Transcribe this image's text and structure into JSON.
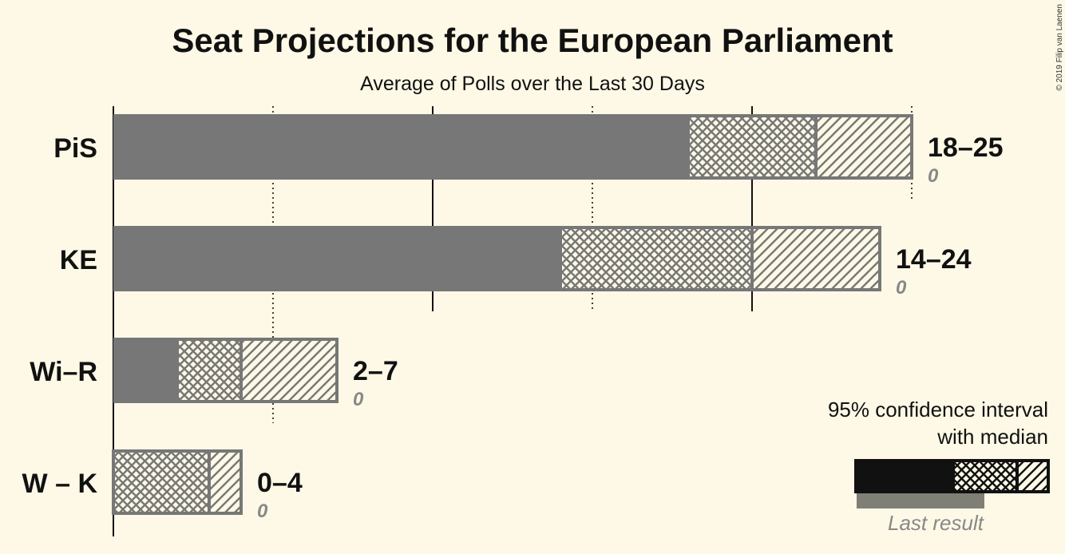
{
  "chart_data": {
    "type": "bar",
    "title": "Seat Projections for the European Parliament",
    "subtitle": "Average of Polls over the Last 30 Days",
    "xlim": [
      0,
      25
    ],
    "gridlines": [
      0,
      5,
      10,
      15,
      20,
      25
    ],
    "categories": [
      "PiS",
      "KE",
      "Wi–R",
      "W – K"
    ],
    "series": [
      {
        "party": "PiS",
        "low": 18,
        "median": 22,
        "high": 25,
        "range_label": "18–25",
        "last_result": "0"
      },
      {
        "party": "KE",
        "low": 14,
        "median": 20,
        "high": 24,
        "range_label": "14–24",
        "last_result": "0"
      },
      {
        "party": "Wi–R",
        "low": 2,
        "median": 4,
        "high": 7,
        "range_label": "2–7",
        "last_result": "0"
      },
      {
        "party": "W – K",
        "low": 0,
        "median": 3,
        "high": 4,
        "range_label": "0–4",
        "last_result": "0"
      }
    ],
    "legend": {
      "line1": "95% confidence interval",
      "line2": "with median",
      "last_result": "Last result",
      "placement": "bottom-right"
    }
  },
  "copyright": "© 2019 Filip van Laenen",
  "colors": {
    "background": "#fdf9e6",
    "bar": "#777777",
    "hatch": "#777777",
    "legend_bar": "#111111",
    "last_result_bar": "#7f7f75"
  }
}
